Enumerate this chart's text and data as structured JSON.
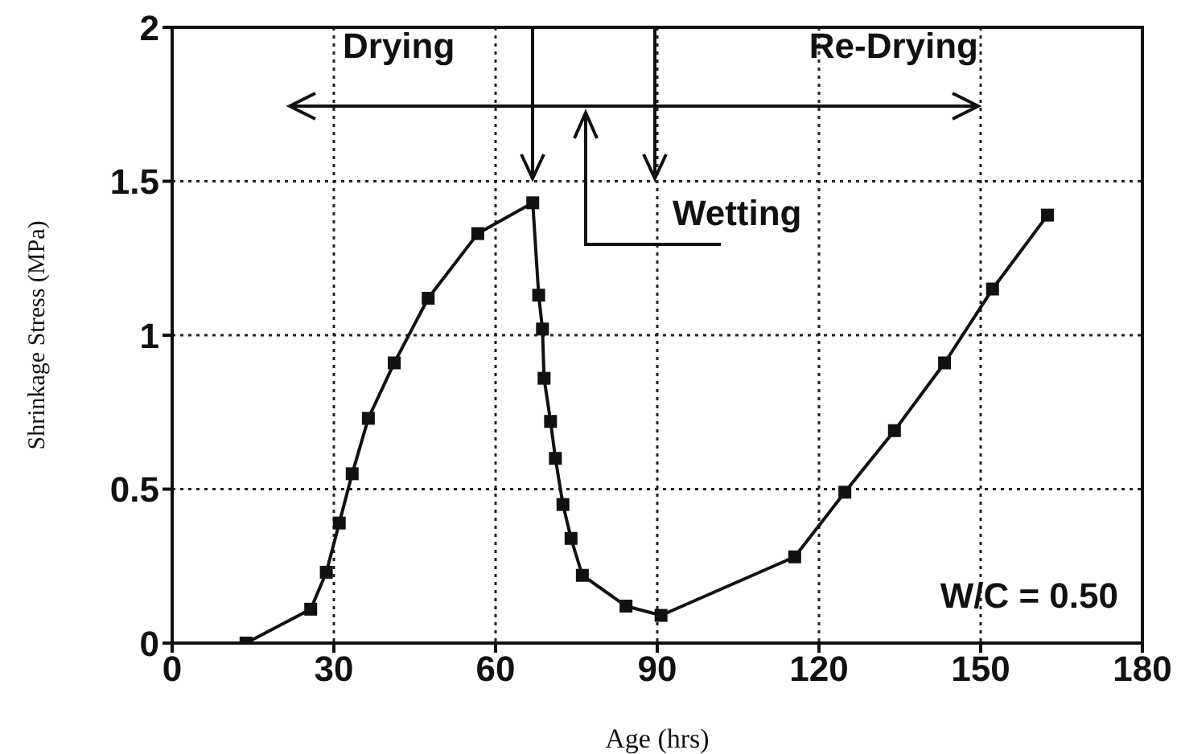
{
  "chart_data": {
    "type": "line",
    "xlabel": "Age (hrs)",
    "ylabel": "Shrinkage Stress (MPa)",
    "x": [
      13.7,
      25.7,
      28.6,
      31,
      33.4,
      36.4,
      41.2,
      47.5,
      56.7,
      66.9,
      68,
      68.7,
      69,
      70.2,
      71.1,
      72.5,
      74,
      76.1,
      84.2,
      90.7,
      115.5,
      124.8,
      134,
      143.3,
      152.2,
      162.4
    ],
    "series": [
      {
        "color": "#111111",
        "values": [
          0,
          0.11,
          0.23,
          0.39,
          0.55,
          0.73,
          0.91,
          1.12,
          1.33,
          1.43,
          1.13,
          1.02,
          0.86,
          0.72,
          0.6,
          0.45,
          0.34,
          0.22,
          0.12,
          0.09,
          0.28,
          0.49,
          0.69,
          0.91,
          1.15,
          1.39
        ]
      }
    ],
    "xlim": [
      0,
      180
    ],
    "xticks": [
      0,
      30,
      60,
      90,
      120,
      150,
      180
    ],
    "ylim": [
      0,
      2
    ],
    "yticks": [
      0,
      0.5,
      1,
      1.5,
      2
    ],
    "grid": true,
    "marker": "square",
    "line_style": "solid",
    "annotations": [
      "Drying",
      "Re-Drying",
      "Wetting",
      "W/C = 0.50"
    ]
  }
}
